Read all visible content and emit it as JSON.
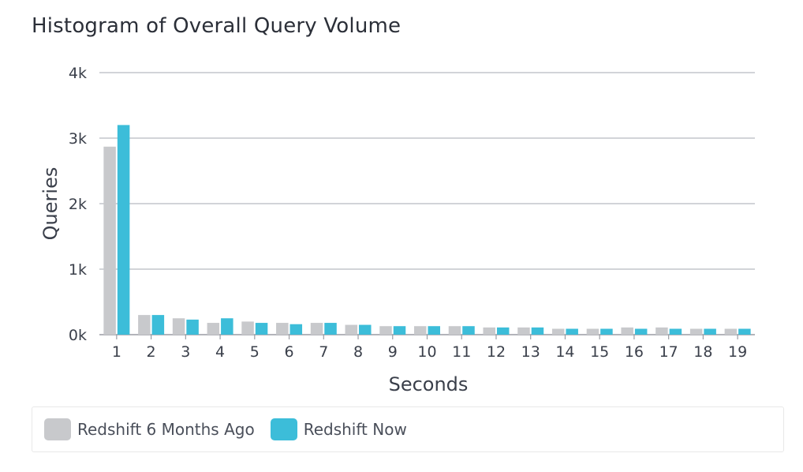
{
  "chart_data": {
    "type": "bar",
    "title": "Histogram of Overall Query Volume",
    "xlabel": "Seconds",
    "ylabel": "Queries",
    "ylim": [
      0,
      4000
    ],
    "yticks": [
      "0k",
      "1k",
      "2k",
      "3k",
      "4k"
    ],
    "yticks_values": [
      0,
      1000,
      2000,
      3000,
      4000
    ],
    "categories": [
      "1",
      "2",
      "3",
      "4",
      "5",
      "6",
      "7",
      "8",
      "9",
      "10",
      "11",
      "12",
      "13",
      "14",
      "15",
      "16",
      "17",
      "18",
      "19"
    ],
    "series": [
      {
        "name": "Redshift 6 Months Ago",
        "color": "#c8c9cc",
        "values": [
          2870,
          300,
          250,
          180,
          200,
          180,
          180,
          150,
          130,
          130,
          130,
          110,
          110,
          90,
          90,
          110,
          110,
          90,
          90
        ]
      },
      {
        "name": "Redshift Now",
        "color": "#3cbdd9",
        "values": [
          3200,
          300,
          230,
          250,
          180,
          160,
          180,
          150,
          130,
          130,
          130,
          110,
          110,
          90,
          90,
          90,
          90,
          90,
          90
        ]
      }
    ],
    "grid": true,
    "legend_position": "bottom"
  }
}
